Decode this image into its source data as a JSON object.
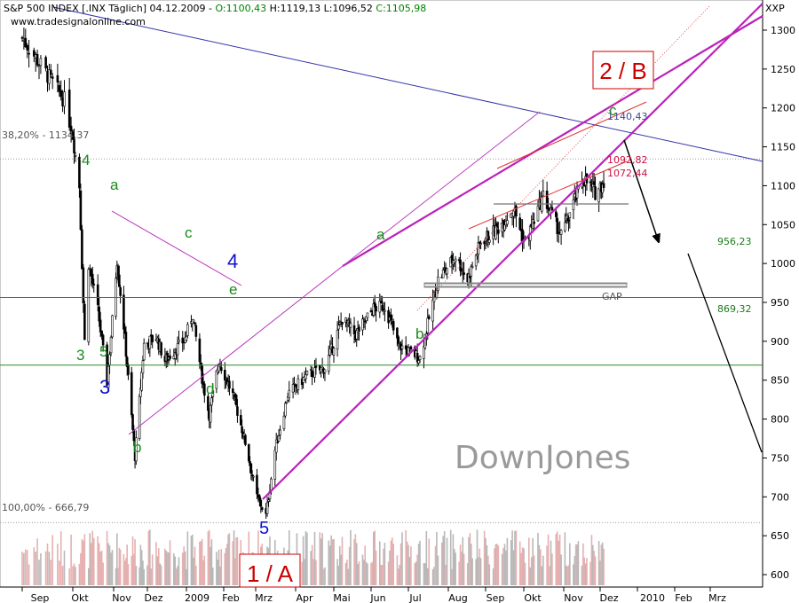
{
  "header": {
    "line1_prefix": "S&P 500 INDEX [.INX Täglich] 04.12.2009 - ",
    "open": "O:1100,43",
    "high": "H:1119,13",
    "low": "L:1096,52",
    "close": "C:1105,98",
    "website": "www.tradesignalonline.com",
    "symbol": "XXP"
  },
  "watermark": "DownJones",
  "chart_data": {
    "type": "candlestick",
    "title": "S&P 500 INDEX [.INX Täglich] 04.12.2009",
    "ylim": [
      595,
      1330
    ],
    "y_ticks": [
      1300,
      1250,
      1200,
      1150,
      1100,
      1050,
      1000,
      950,
      900,
      850,
      800,
      750,
      700,
      650,
      600
    ],
    "x_ticks": [
      "Sep",
      "Okt",
      "Nov",
      "Dez",
      "2009",
      "Feb",
      "Mrz",
      "Apr",
      "Mai",
      "Jun",
      "Jul",
      "Aug",
      "Sep",
      "Okt",
      "Nov",
      "Dez",
      "2010",
      "Feb",
      "Mrz"
    ],
    "price_path": [
      [
        "2008-09-01",
        1290
      ],
      [
        "2008-09-12",
        1255
      ],
      [
        "2008-09-26",
        1210
      ],
      [
        "2008-10-01",
        1165
      ],
      [
        "2008-10-06",
        1100
      ],
      [
        "2008-10-10",
        900
      ],
      [
        "2008-10-13",
        1000
      ],
      [
        "2008-10-20",
        940
      ],
      [
        "2008-10-27",
        848
      ],
      [
        "2008-11-04",
        1005
      ],
      [
        "2008-11-10",
        920
      ],
      [
        "2008-11-20",
        752
      ],
      [
        "2008-11-28",
        896
      ],
      [
        "2008-12-08",
        905
      ],
      [
        "2008-12-15",
        875
      ],
      [
        "2008-12-31",
        903
      ],
      [
        "2009-01-06",
        935
      ],
      [
        "2009-01-15",
        843
      ],
      [
        "2009-01-20",
        805
      ],
      [
        "2009-01-28",
        875
      ],
      [
        "2009-02-10",
        827
      ],
      [
        "2009-02-20",
        770
      ],
      [
        "2009-03-02",
        700
      ],
      [
        "2009-03-09",
        676
      ],
      [
        "2009-03-16",
        760
      ],
      [
        "2009-03-26",
        832
      ],
      [
        "2009-04-10",
        856
      ],
      [
        "2009-04-24",
        866
      ],
      [
        "2009-05-08",
        929
      ],
      [
        "2009-05-19",
        908
      ],
      [
        "2009-06-03",
        942
      ],
      [
        "2009-06-12",
        946
      ],
      [
        "2009-06-23",
        895
      ],
      [
        "2009-07-10",
        879
      ],
      [
        "2009-07-24",
        979
      ],
      [
        "2009-08-07",
        1010
      ],
      [
        "2009-08-17",
        979
      ],
      [
        "2009-08-28",
        1028
      ],
      [
        "2009-09-10",
        1044
      ],
      [
        "2009-09-23",
        1071
      ],
      [
        "2009-10-02",
        1025
      ],
      [
        "2009-10-16",
        1087
      ],
      [
        "2009-10-30",
        1036
      ],
      [
        "2009-11-17",
        1110
      ],
      [
        "2009-11-27",
        1091
      ],
      [
        "2009-12-04",
        1106
      ]
    ],
    "horizontal_levels": [
      {
        "value": 956.23,
        "label": "956,23"
      },
      {
        "value": 869.32,
        "label": "869,32"
      }
    ],
    "fib_labels": [
      {
        "text": "38,20% - 1134,37",
        "value": 1134.37
      },
      {
        "text": "100,00% - 666,79",
        "value": 666.79
      }
    ],
    "price_labels": [
      "1140,43",
      "1092,82",
      "1072,44"
    ],
    "gap_label": "GAP",
    "wave_labels": [
      "4",
      "a",
      "c",
      "4",
      "e",
      "3",
      "5",
      "3",
      "d",
      "b",
      "b",
      "a",
      "5",
      "c"
    ],
    "boxed_labels": [
      "2 / B",
      "1 / A"
    ]
  }
}
